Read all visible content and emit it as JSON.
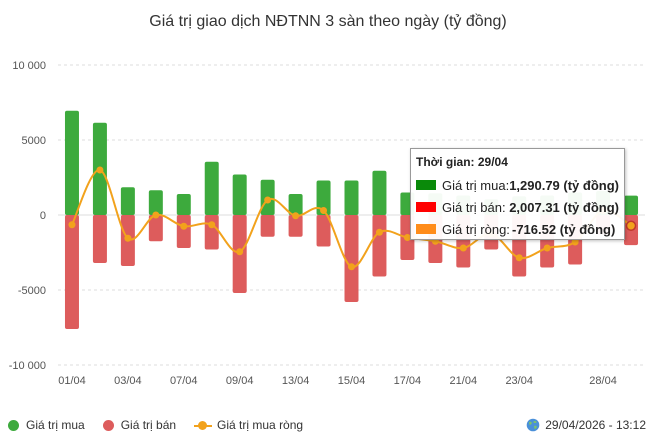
{
  "chart_data": {
    "type": "bar",
    "title": "Giá trị giao dịch NĐTNN 3 sàn theo ngày (tỷ đồng)",
    "ylim": [
      -10000,
      10000
    ],
    "yticks": [
      10000,
      5000,
      0,
      -5000,
      -10000
    ],
    "ytick_labels": [
      "10 000",
      "5000",
      "0",
      "-5000",
      "-10 000"
    ],
    "x": [
      "01/04",
      "02/04",
      "03/04",
      "06/04",
      "07/04",
      "08/04",
      "09/04",
      "10/04",
      "13/04",
      "14/04",
      "15/04",
      "16/04",
      "17/04",
      "20/04",
      "21/04",
      "22/04",
      "23/04",
      "24/04",
      "27/04",
      "28/04",
      "29/04"
    ],
    "xtick_labels": [
      "01/04",
      "03/04",
      "07/04",
      "09/04",
      "13/04",
      "15/04",
      "17/04",
      "21/04",
      "23/04",
      "28/04"
    ],
    "series": [
      {
        "name": "Giá trị mua",
        "kind": "bar",
        "color": "#3daa3d",
        "values": [
          6950,
          6150,
          1850,
          1650,
          1400,
          3550,
          2700,
          2350,
          1400,
          2300,
          2300,
          2950,
          1500,
          1450,
          1300,
          1050,
          1250,
          1300,
          1500,
          1600,
          1290.79
        ]
      },
      {
        "name": "Giá trị bán",
        "kind": "bar",
        "color": "#dd5c5c",
        "values": [
          -7600,
          -3200,
          -3400,
          -1750,
          -2200,
          -2300,
          -5200,
          -1450,
          -1450,
          -2100,
          -5800,
          -4100,
          -3000,
          -3200,
          -3500,
          -2300,
          -4100,
          -3500,
          -3300,
          -1300,
          -2007.31
        ]
      },
      {
        "name": "Giá trị mua ròng",
        "kind": "line",
        "color": "#f2a21c",
        "values": [
          -650,
          3000,
          -1550,
          0,
          -750,
          -650,
          -2450,
          1000,
          -50,
          300,
          -3450,
          -1150,
          -1500,
          -1750,
          -2200,
          -1250,
          -2850,
          -2200,
          -1800,
          300,
          -716.52
        ]
      }
    ],
    "legend_position": "bottom-left",
    "grid": "horizontal-dashed"
  },
  "tooltip": {
    "header_label": "Thời gian:",
    "date": "29/04",
    "rows": [
      {
        "label": "Giá trị mua:",
        "value": "1,290.79 (tỷ đồng)",
        "color": "#0a8a0a"
      },
      {
        "label": "Giá trị bán:",
        "value": "2,007.31 (tỷ đồng)",
        "color": "#ff0000"
      },
      {
        "label": "Giá trị ròng:",
        "value": "-716.52 (tỷ đồng)",
        "color": "#ff8c1a"
      }
    ]
  },
  "legend": {
    "items": [
      {
        "label": "Giá trị mua",
        "color": "#3daa3d",
        "kind": "dot"
      },
      {
        "label": "Giá trị bán",
        "color": "#dd5c5c",
        "kind": "dot"
      },
      {
        "label": "Giá trị mua ròng",
        "color": "#f2a21c",
        "kind": "line"
      }
    ]
  },
  "footer": {
    "timestamp": "29/04/2026 - 13:12",
    "icon": "globe-icon"
  }
}
